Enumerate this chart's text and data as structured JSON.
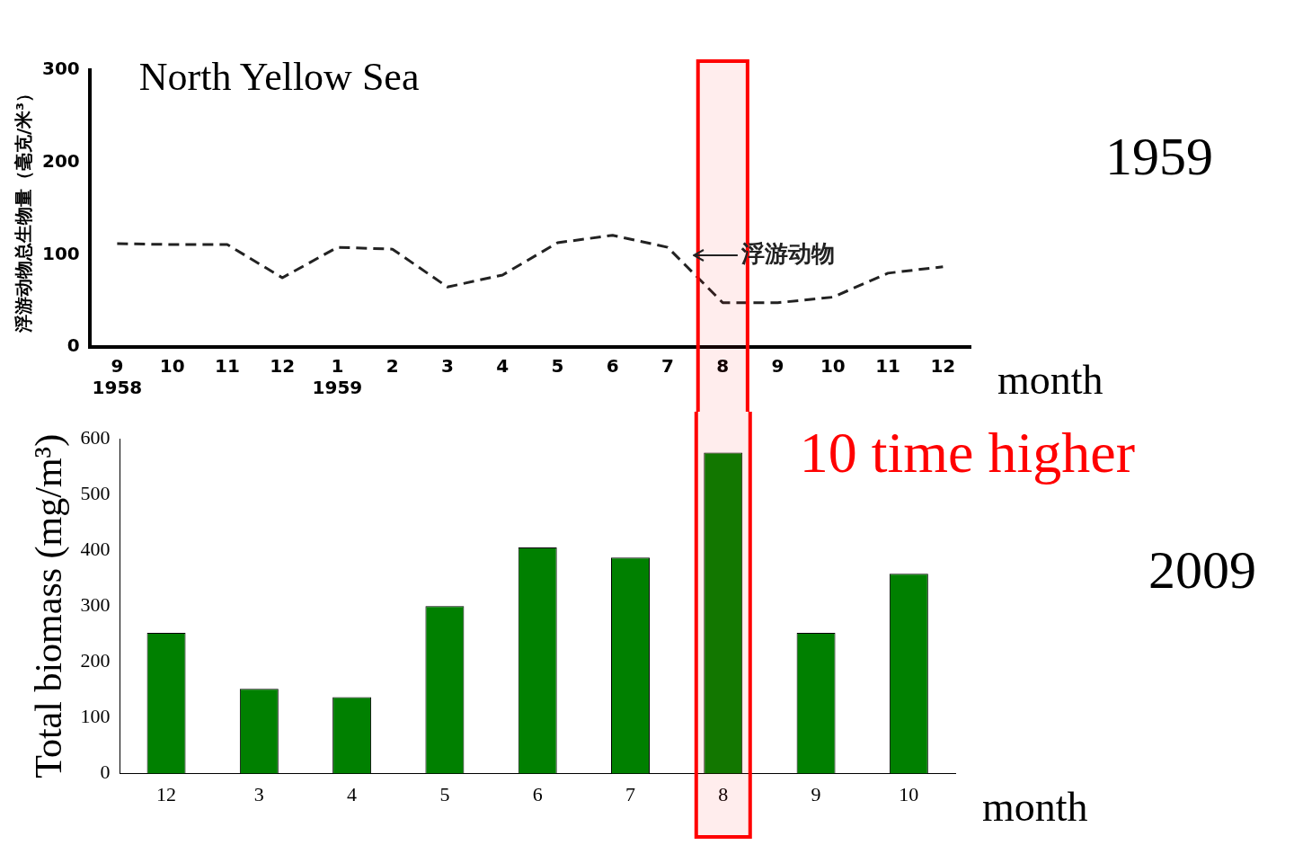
{
  "chart_data": [
    {
      "type": "line",
      "title": "North Yellow Sea",
      "ylabel": "浮游动物总生物量（毫克/米³）",
      "xlabel": "month",
      "categories": [
        "9\n1958",
        "10",
        "11",
        "12",
        "1\n1959",
        "2",
        "3",
        "4",
        "5",
        "6",
        "7",
        "8",
        "9",
        "10",
        "11",
        "12"
      ],
      "series": [
        {
          "color": "#222222",
          "values": [
            112,
            111,
            111,
            75,
            108,
            106,
            65,
            78,
            113,
            121,
            108,
            48,
            48,
            54,
            80,
            87
          ]
        }
      ],
      "ylim": [
        0,
        300
      ],
      "yticks": [
        0,
        100,
        200,
        300
      ],
      "grid": false,
      "legend": false,
      "marker": "none",
      "line_style": "dashed",
      "annotations": [
        "1959",
        "浮游动物"
      ],
      "bands": [
        {
          "axis": "x",
          "from": "8",
          "to": "8",
          "color": "#ff0000"
        }
      ]
    },
    {
      "type": "bar",
      "ylabel": "Total biomass (mg/m³)",
      "xlabel": "month",
      "categories": [
        "12",
        "3",
        "4",
        "5",
        "6",
        "7",
        "8",
        "9",
        "10"
      ],
      "series": [
        {
          "color": "#008000",
          "values": [
            252,
            152,
            137,
            300,
            405,
            387,
            575,
            252,
            358
          ]
        }
      ],
      "ylim": [
        0,
        600
      ],
      "yticks": [
        0,
        100,
        200,
        300,
        400,
        500,
        600
      ],
      "grid": false,
      "legend": false,
      "annotations": [
        "2009"
      ],
      "bands": [
        {
          "axis": "x",
          "from": "8",
          "to": "8",
          "color": "#ff0000",
          "label": "10 time higher"
        }
      ]
    }
  ]
}
